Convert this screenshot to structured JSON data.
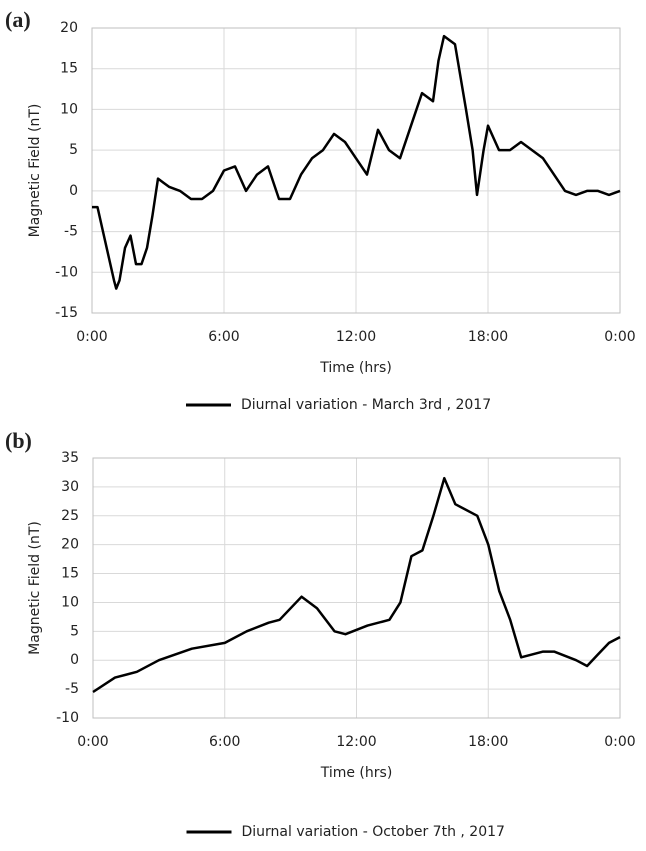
{
  "chart_data": [
    {
      "type": "line",
      "panel_label": "(a)",
      "x_label": "Time (hrs)",
      "y_label": "Magnetic Field (nT)",
      "xlim": [
        0,
        24
      ],
      "xticks": [
        {
          "value": 0,
          "label": "0:00"
        },
        {
          "value": 6,
          "label": "6:00"
        },
        {
          "value": 12,
          "label": "12:00"
        },
        {
          "value": 18,
          "label": "18:00"
        },
        {
          "value": 24,
          "label": "0:00"
        }
      ],
      "ylim": [
        -15,
        20
      ],
      "yticks": [
        -15,
        -10,
        -5,
        0,
        5,
        10,
        15,
        20
      ],
      "grid": true,
      "x": [
        0,
        0.25,
        0.5,
        0.75,
        1,
        1.1,
        1.25,
        1.5,
        1.75,
        2,
        2.25,
        2.5,
        2.75,
        3,
        3.25,
        3.5,
        4,
        4.5,
        5,
        5.5,
        6,
        6.5,
        7,
        7.5,
        8,
        8.5,
        9,
        9.5,
        10,
        10.5,
        11,
        11.5,
        12,
        12.5,
        13,
        13.5,
        14,
        14.5,
        15,
        15.5,
        15.75,
        16,
        16.5,
        17,
        17.3,
        17.5,
        17.8,
        18,
        18.5,
        19,
        19.5,
        20,
        20.5,
        21,
        21.5,
        22,
        22.5,
        23,
        23.5,
        24
      ],
      "series": [
        {
          "name": "Diurnal variation - March 3rd , 2017",
          "color": "#000000",
          "values": [
            -2,
            -2,
            -5,
            -8,
            -11,
            -12,
            -11,
            -7,
            -5.5,
            -9,
            -9,
            -7,
            -3,
            1.5,
            1,
            0.5,
            0,
            -1,
            -1,
            0,
            2.5,
            3,
            0,
            2,
            3,
            -1,
            -1,
            2,
            4,
            5,
            7,
            6,
            4,
            2,
            7.5,
            5,
            4,
            8,
            12,
            11,
            16,
            19,
            18,
            10,
            5,
            -0.5,
            5,
            8,
            5,
            5,
            6,
            5,
            4,
            2,
            0,
            -0.5,
            0,
            0,
            -0.5,
            0
          ]
        }
      ],
      "legend": "bottom"
    },
    {
      "type": "line",
      "panel_label": "(b)",
      "x_label": "Time (hrs)",
      "y_label": "Magnetic Field (nT)",
      "xlim": [
        0,
        24
      ],
      "xticks": [
        {
          "value": 0,
          "label": "0:00"
        },
        {
          "value": 6,
          "label": "6:00"
        },
        {
          "value": 12,
          "label": "12:00"
        },
        {
          "value": 18,
          "label": "18:00"
        },
        {
          "value": 24,
          "label": "0:00"
        }
      ],
      "ylim": [
        -10,
        35
      ],
      "yticks": [
        -10,
        -5,
        0,
        5,
        10,
        15,
        20,
        25,
        30,
        35
      ],
      "grid": true,
      "x": [
        0,
        1,
        2,
        3,
        4.5,
        6,
        7,
        8,
        8.5,
        9.5,
        10.2,
        11,
        11.5,
        12.5,
        13.5,
        14,
        14.5,
        15,
        15.5,
        16,
        16.5,
        17.5,
        18,
        18.5,
        19,
        19.5,
        20,
        20.5,
        21,
        22,
        22.5,
        23,
        23.5,
        24
      ],
      "series": [
        {
          "name": "Diurnal variation - October 7th , 2017",
          "color": "#000000",
          "values": [
            -5.5,
            -3,
            -2,
            0,
            2,
            3,
            5,
            6.5,
            7,
            11,
            9,
            5,
            4.5,
            6,
            7,
            10,
            18,
            19,
            25,
            31.5,
            27,
            25,
            20,
            12,
            7,
            0.5,
            1,
            1.5,
            1.5,
            0,
            -1,
            1,
            3,
            4
          ]
        }
      ],
      "legend": "bottom"
    }
  ]
}
